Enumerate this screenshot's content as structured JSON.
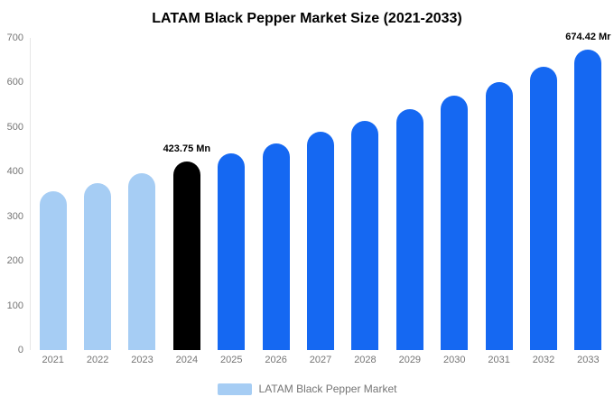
{
  "title": "LATAM Black Pepper Market Size (2021-2033)",
  "legend": {
    "label": "LATAM Black Pepper Market",
    "swatch_color": "#a6cdf4"
  },
  "colors": {
    "light_blue": "#a6cdf4",
    "blue": "#1568f2",
    "black": "#000000",
    "tick_text": "#757575"
  },
  "chart_data": {
    "type": "bar",
    "title": "LATAM Black Pepper Market Size (2021-2033)",
    "categories": [
      "2021",
      "2022",
      "2023",
      "2024",
      "2025",
      "2026",
      "2027",
      "2028",
      "2029",
      "2030",
      "2031",
      "2032",
      "2033"
    ],
    "values": [
      356,
      375,
      396,
      423.75,
      441,
      463,
      489,
      514,
      541,
      570,
      601,
      636,
      674.42
    ],
    "bar_colors": [
      "#a6cdf4",
      "#a6cdf4",
      "#a6cdf4",
      "#000000",
      "#1568f2",
      "#1568f2",
      "#1568f2",
      "#1568f2",
      "#1568f2",
      "#1568f2",
      "#1568f2",
      "#1568f2",
      "#1568f2"
    ],
    "annotations": [
      {
        "category": "2024",
        "text": "423.75 Mn"
      },
      {
        "category": "2033",
        "text": "674.42 Mr"
      }
    ],
    "xlabel": "",
    "ylabel": "",
    "ylim": [
      0,
      700
    ],
    "yticks": [
      0,
      100,
      200,
      300,
      400,
      500,
      600,
      700
    ],
    "grid": false,
    "legend_position": "bottom",
    "legend_entries": [
      "LATAM Black Pepper Market"
    ]
  }
}
